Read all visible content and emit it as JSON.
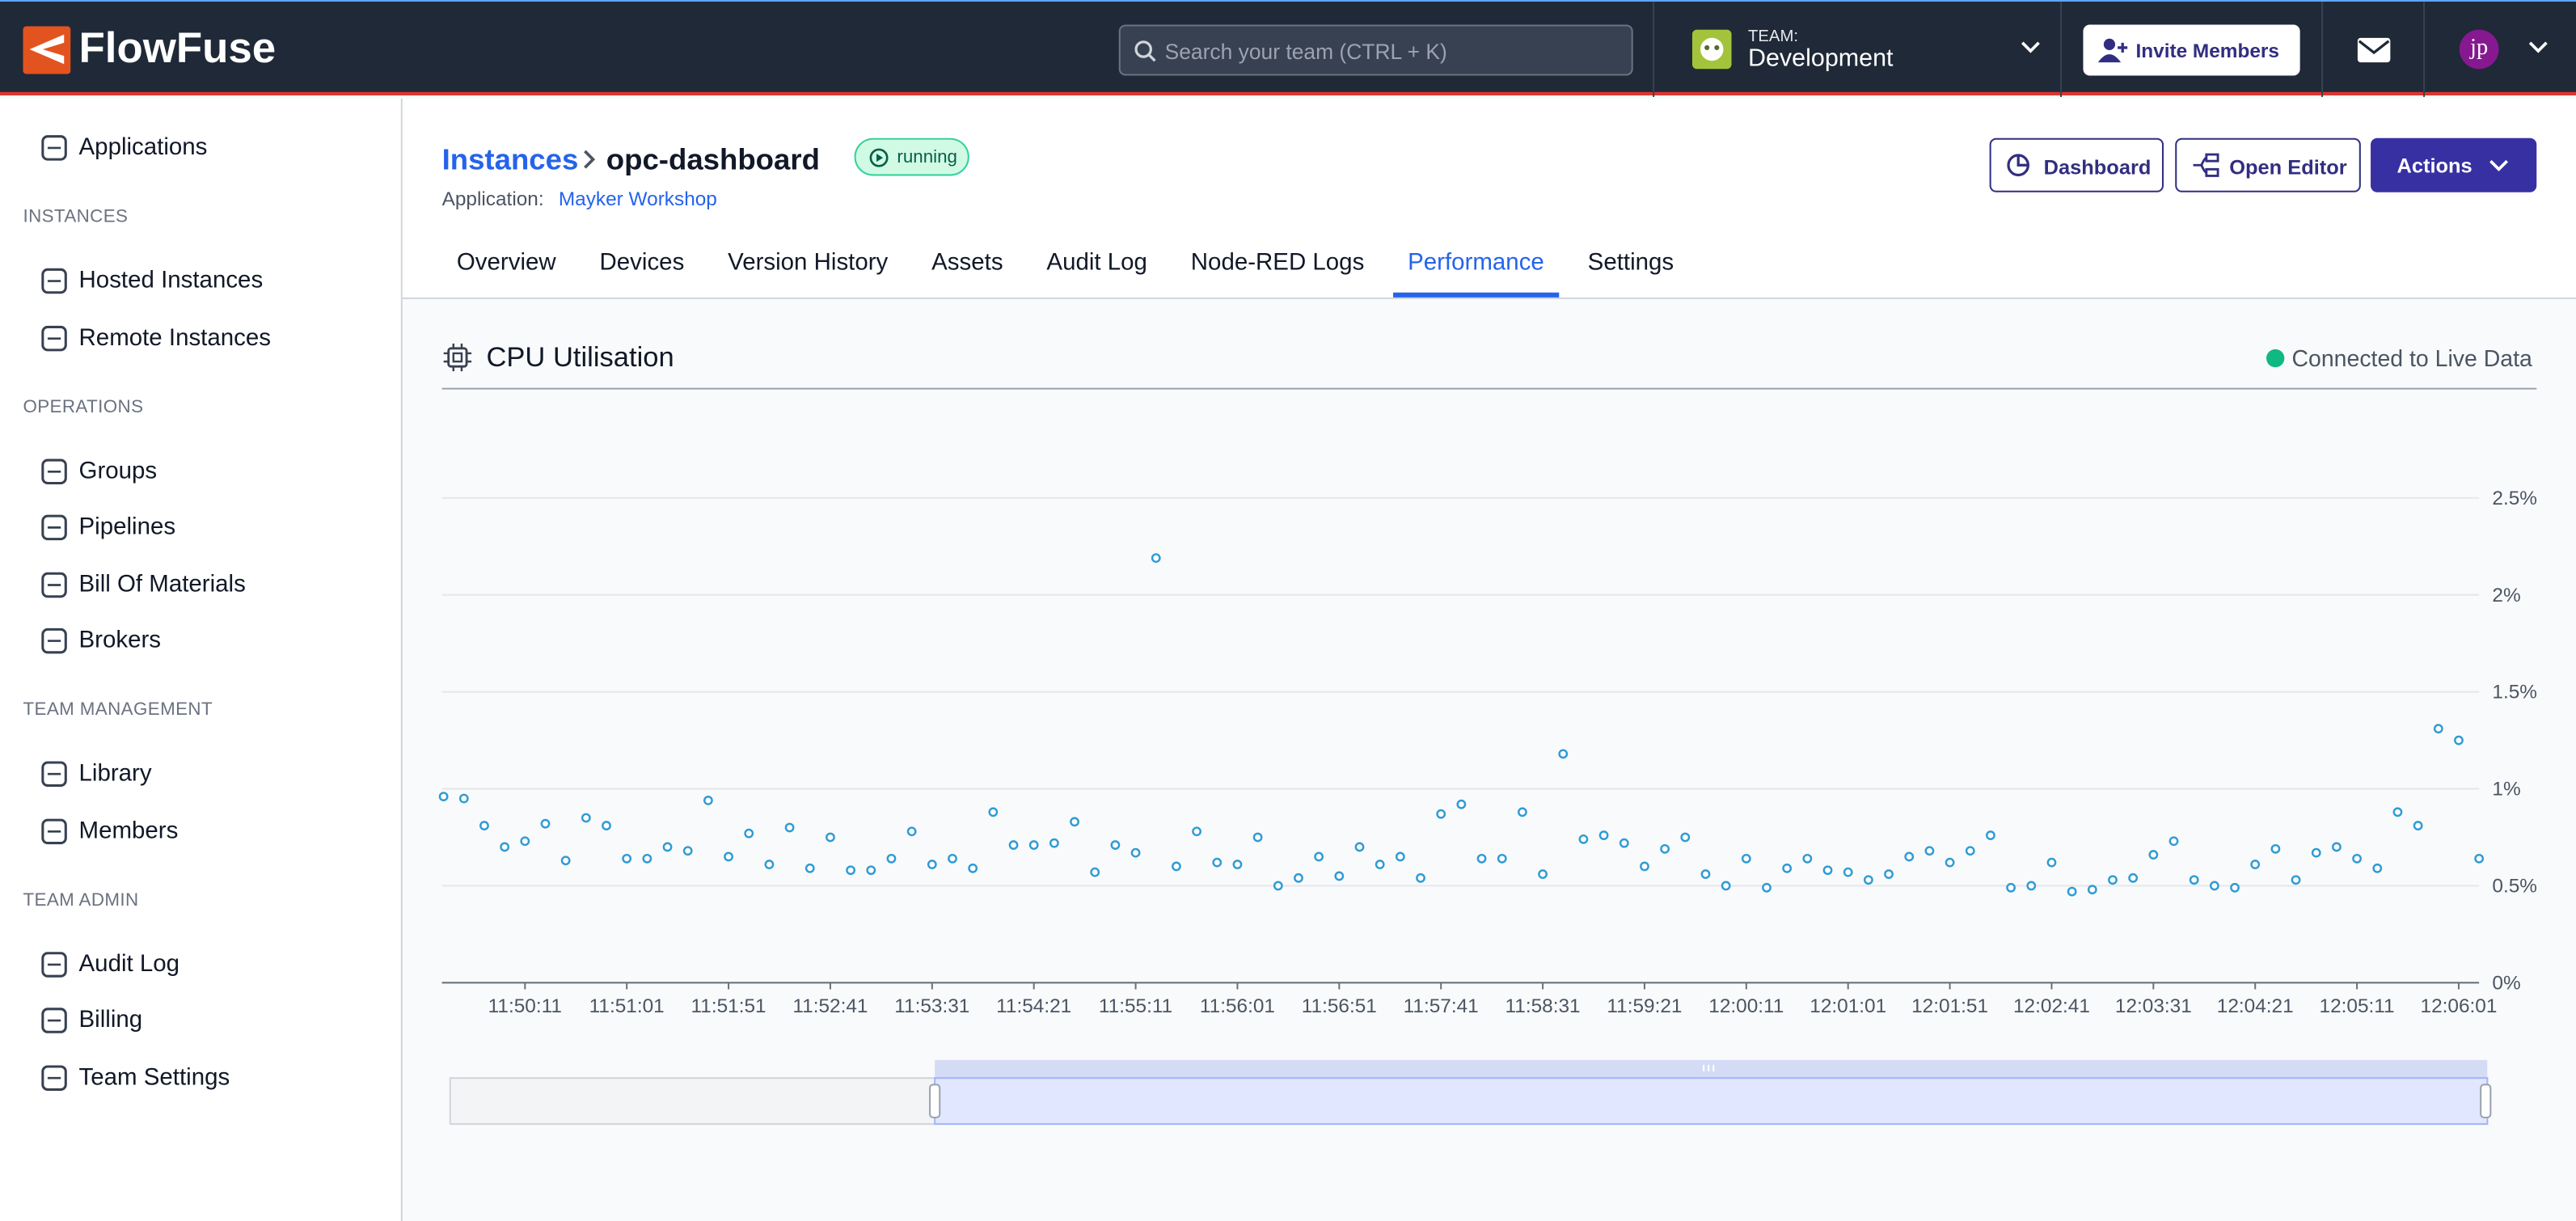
{
  "header": {
    "logo": "FlowFuse",
    "search_placeholder": "Search your team (CTRL + K)",
    "team_label": "TEAM:",
    "team_name": "Development",
    "invite_button": "Invite Members",
    "avatar": "jp"
  },
  "sidebar": {
    "top": [
      "Applications"
    ],
    "sections": [
      {
        "heading": "INSTANCES",
        "items": [
          "Hosted Instances",
          "Remote Instances"
        ]
      },
      {
        "heading": "OPERATIONS",
        "items": [
          "Groups",
          "Pipelines",
          "Bill Of Materials",
          "Brokers"
        ]
      },
      {
        "heading": "TEAM MANAGEMENT",
        "items": [
          "Library",
          "Members"
        ]
      },
      {
        "heading": "TEAM ADMIN",
        "items": [
          "Audit Log",
          "Billing",
          "Team Settings"
        ]
      }
    ]
  },
  "breadcrumb": {
    "parent": "Instances",
    "current": "opc-dashboard",
    "status": "running"
  },
  "application": {
    "label": "Application:",
    "name": "Mayker Workshop"
  },
  "actions": [
    "Dashboard",
    "Open Editor",
    "Actions"
  ],
  "tabs": {
    "items": [
      "Overview",
      "Devices",
      "Version History",
      "Assets",
      "Audit Log",
      "Node-RED Logs",
      "Performance",
      "Settings"
    ],
    "active": 6
  },
  "panel": {
    "title": "CPU Utilisation",
    "status": "Connected to Live Data"
  },
  "chart_data": {
    "type": "line",
    "color": "#2e9bd6",
    "grid": true,
    "categories": [
      null,
      null,
      null,
      null,
      "11:50:11",
      null,
      null,
      null,
      null,
      "11:51:01",
      null,
      null,
      null,
      null,
      "11:51:51",
      null,
      null,
      null,
      null,
      "11:52:41",
      null,
      null,
      null,
      null,
      "11:53:31",
      null,
      null,
      null,
      null,
      "11:54:21",
      null,
      null,
      null,
      null,
      "11:55:11",
      null,
      null,
      null,
      null,
      "11:56:01",
      null,
      null,
      null,
      null,
      "11:56:51",
      null,
      null,
      null,
      null,
      "11:57:41",
      null,
      null,
      null,
      null,
      "11:58:31",
      null,
      null,
      null,
      null,
      "11:59:21",
      null,
      null,
      null,
      null,
      "12:00:11",
      null,
      null,
      null,
      null,
      "12:01:01",
      null,
      null,
      null,
      null,
      "12:01:51",
      null,
      null,
      null,
      null,
      "12:02:41",
      null,
      null,
      null,
      null,
      "12:03:31",
      null,
      null,
      null,
      null,
      "12:04:21",
      null,
      null,
      null,
      null,
      "12:05:11",
      null,
      null,
      null,
      null,
      "12:06:01",
      null
    ],
    "values": [
      0.96,
      0.95,
      0.81,
      0.7,
      0.73,
      0.82,
      0.63,
      0.85,
      0.81,
      0.64,
      0.64,
      0.7,
      0.68,
      0.94,
      0.65,
      0.77,
      0.61,
      0.8,
      0.59,
      0.75,
      0.58,
      0.58,
      0.64,
      0.78,
      0.61,
      0.64,
      0.59,
      0.88,
      0.71,
      0.71,
      0.72,
      0.83,
      0.57,
      0.71,
      0.67,
      2.19,
      0.6,
      0.78,
      0.62,
      0.61,
      0.75,
      0.5,
      0.54,
      0.65,
      0.55,
      0.7,
      0.61,
      0.65,
      0.54,
      0.87,
      0.92,
      0.64,
      0.64,
      0.88,
      0.56,
      1.18,
      0.74,
      0.76,
      0.72,
      0.6,
      0.69,
      0.75,
      0.56,
      0.5,
      0.64,
      0.49,
      0.59,
      0.64,
      0.58,
      0.57,
      0.53,
      0.56,
      0.65,
      0.68,
      0.62,
      0.68,
      0.76,
      0.49,
      0.5,
      0.62,
      0.47,
      0.48,
      0.53,
      0.54,
      0.66,
      0.73,
      0.53,
      0.5,
      0.49,
      0.61,
      0.69,
      0.53,
      0.67,
      0.7,
      0.64,
      0.59,
      0.88,
      0.81,
      1.31,
      1.25,
      0.64
    ],
    "ylim": [
      0,
      2.5
    ],
    "yticks": [
      {
        "value": 0,
        "label": "0%"
      },
      {
        "value": 0.5,
        "label": "0.5%"
      },
      {
        "value": 1,
        "label": "1%"
      },
      {
        "value": 1.5,
        "label": "1.5%"
      },
      {
        "value": 2,
        "label": "2%"
      },
      {
        "value": 2.5,
        "label": "2.5%"
      }
    ]
  }
}
